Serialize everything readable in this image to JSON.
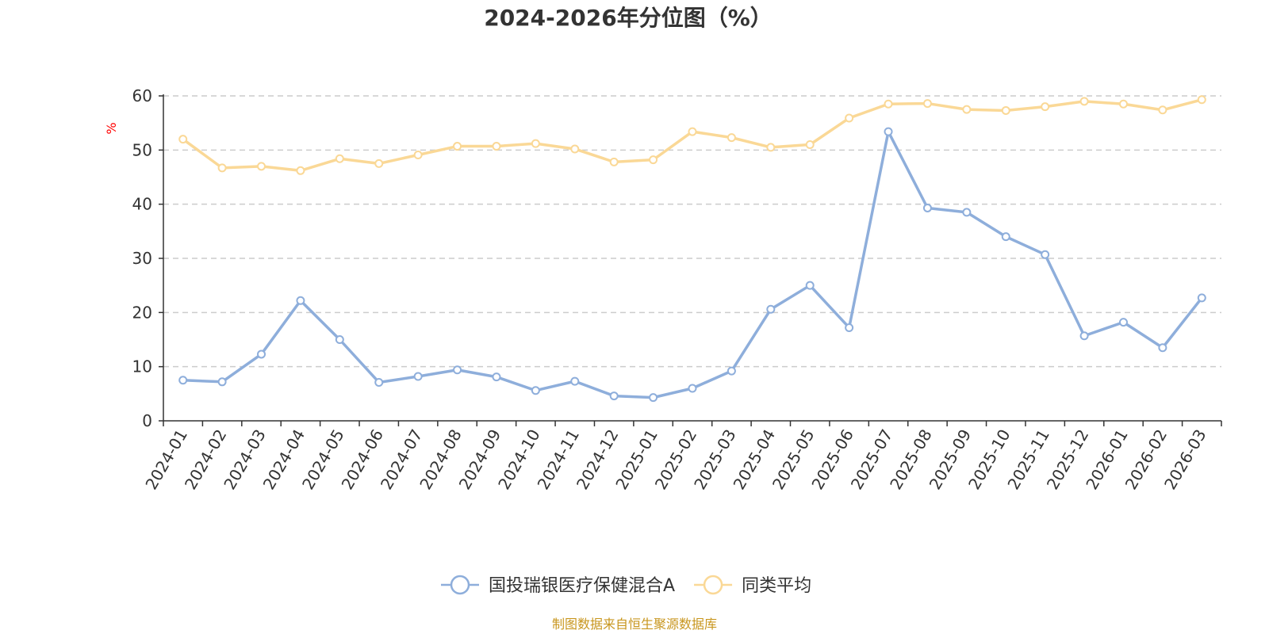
{
  "chart_data": {
    "type": "line",
    "title": "2024-2026年分位图（%）",
    "ylabel": "%",
    "xlabel": "",
    "ylim": [
      0,
      60
    ],
    "yticks": [
      0,
      10,
      20,
      30,
      40,
      50,
      60
    ],
    "grid": true,
    "legend_position": "bottom-center",
    "categories": [
      "2024-01",
      "2024-02",
      "2024-03",
      "2024-04",
      "2024-05",
      "2024-06",
      "2024-07",
      "2024-08",
      "2024-09",
      "2024-10",
      "2024-11",
      "2024-12",
      "2025-01",
      "2025-02",
      "2025-03",
      "2025-04",
      "2025-05",
      "2025-06",
      "2025-07",
      "2025-08",
      "2025-09",
      "2025-10",
      "2025-11",
      "2025-12",
      "2026-01",
      "2026-02",
      "2026-03"
    ],
    "series": [
      {
        "name": "国投瑞银医疗保健混合A",
        "color": "#8eaedb",
        "values": [
          7.5,
          7.2,
          12.3,
          22.2,
          15.0,
          7.1,
          8.2,
          9.4,
          8.1,
          5.6,
          7.3,
          4.6,
          4.3,
          6.0,
          9.2,
          20.6,
          25.0,
          17.2,
          53.4,
          39.3,
          38.5,
          34.0,
          30.7,
          15.7,
          18.2,
          13.5,
          22.7
        ]
      },
      {
        "name": "同类平均",
        "color": "#fad896",
        "values": [
          52.0,
          46.7,
          47.0,
          46.2,
          48.4,
          47.5,
          49.1,
          50.7,
          50.7,
          51.2,
          50.2,
          47.8,
          48.2,
          53.4,
          52.3,
          50.5,
          51.0,
          55.9,
          58.5,
          58.6,
          57.5,
          57.3,
          58.0,
          59.0,
          58.5,
          57.4,
          59.3
        ]
      }
    ],
    "axis_color": "#333333",
    "grid_color": "#cccccc",
    "unit_color": "#ff0000"
  },
  "source": {
    "text": "制图数据来自恒生聚源数据库",
    "color": "#c8961e"
  }
}
